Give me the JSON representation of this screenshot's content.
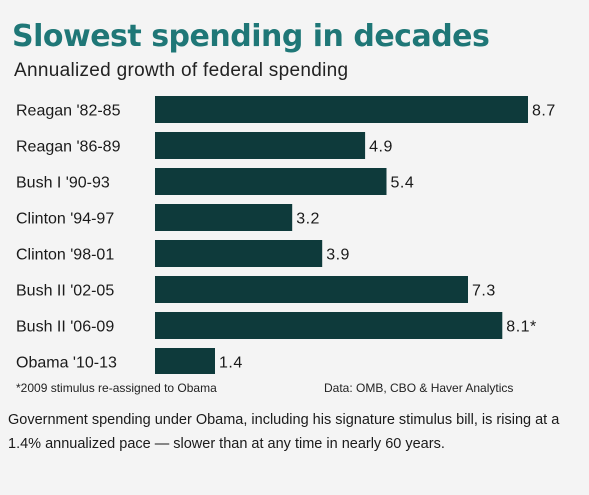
{
  "chart_data": {
    "type": "bar",
    "orientation": "horizontal",
    "title": "Slowest spending in decades",
    "subtitle": "Annualized growth of federal spending",
    "categories": [
      "Reagan '82-85",
      "Reagan '86-89",
      "Bush I '90-93",
      "Clinton '94-97",
      "Clinton '98-01",
      "Bush II '02-05",
      "Bush II '06-09",
      "Obama '10-13"
    ],
    "values": [
      8.7,
      4.9,
      5.4,
      3.2,
      3.9,
      7.3,
      8.1,
      1.4
    ],
    "value_labels": [
      "8.7",
      "4.9",
      "5.4",
      "3.2",
      "3.9",
      "7.3",
      "8.1*",
      "1.4"
    ],
    "xlim": [
      0,
      8.7
    ],
    "bar_color": "#0e3a3b",
    "title_color": "#1f7777",
    "grid": false,
    "footnote": "*2009 stimulus re-assigned to Obama",
    "source": "Data: OMB, CBO & Haver Analytics"
  },
  "caption": "Government spending under Obama, including his signature stimulus bill, is rising at a 1.4% annualized pace — slower than at any time in nearly 60 years."
}
